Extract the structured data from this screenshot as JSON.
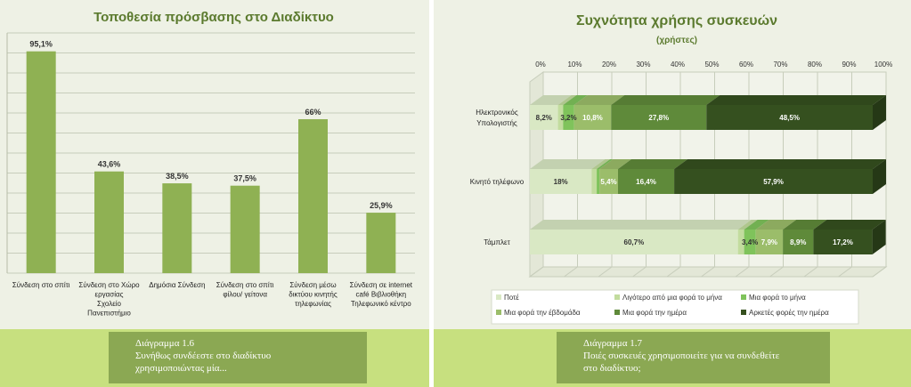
{
  "left_chart": {
    "title": "Τοποθεσία πρόσβασης στο Διαδίκτυο",
    "bar_color": "#8fb153",
    "categories": [
      [
        "Σύνδεση στο σπίτι"
      ],
      [
        "Σύνδεση στο Χώρο",
        "εργασίας",
        "Σχολείο",
        "Πανεπιστήμιο"
      ],
      [
        "Δημόσια Σύνδεση"
      ],
      [
        "Σύνδεση στο σπίτι",
        "φίλου/ γείτονα"
      ],
      [
        "Σύνδεση μέσω",
        "δικτύου κινητής",
        "τηλεφωνίας"
      ],
      [
        "Σύνδεση σε internet",
        "café Βιβλιοθήκη",
        "Τηλεφωνικό κέντρο"
      ]
    ],
    "data_labels": [
      "95,1%",
      "43,6%",
      "38,5%",
      "37,5%",
      "66%",
      "25,9%"
    ]
  },
  "right_chart": {
    "title": "Συχνότητα χρήσης συσκευών",
    "subtitle": "(χρήστες)",
    "x_ticks": [
      "0%",
      "10%",
      "20%",
      "30%",
      "40%",
      "50%",
      "60%",
      "70%",
      "80%",
      "90%",
      "100%"
    ],
    "categories": [
      [
        "Ηλεκτρονικός",
        "Υπολογιστής"
      ],
      [
        "Κινητό τηλέφωνο"
      ],
      [
        "Τάμπλετ"
      ]
    ],
    "legend": [
      "Ποτέ",
      "Λιγότερο από μια φορά το μήνα",
      "Μια φορά το μήνα",
      "Μια φορά την έβδομάδα",
      "Μια φορά την ημέρα",
      "Αρκετές φορές την ημέρα"
    ],
    "series_colors": [
      "#d9e8c4",
      "#c2dc9e",
      "#7fc35b",
      "#9bbd6a",
      "#5f8a3a",
      "#35501f"
    ],
    "label_colors": [
      "#333333",
      "#333333",
      "#333333",
      "#ffffff",
      "#ffffff",
      "#ffffff"
    ],
    "labels": [
      [
        "8,2%",
        "",
        "3,2%",
        "10,8%",
        "27,8%",
        "48,5%"
      ],
      [
        "18%",
        "",
        "",
        "5,4%",
        "16,4%",
        "57,9%"
      ],
      [
        "60,7%",
        "",
        "3,4%",
        "7,9%",
        "8,9%",
        "17,2%"
      ]
    ]
  },
  "chart_data": [
    {
      "type": "bar",
      "title": "Τοποθεσία πρόσβασης στο Διαδίκτυο",
      "categories": [
        "Σύνδεση στο σπίτι",
        "Σύνδεση στο Χώρο εργασίας Σχολείο Πανεπιστήμιο",
        "Δημόσια Σύνδεση",
        "Σύνδεση στο σπίτι φίλου/ γείτονα",
        "Σύνδεση μέσω δικτύου κινητής τηλεφωνίας",
        "Σύνδεση σε internet café Βιβλιοθήκη Τηλεφωνικό κέντρο"
      ],
      "values": [
        95.1,
        43.6,
        38.5,
        37.5,
        66,
        25.9
      ],
      "ylim": [
        0,
        100
      ],
      "grid": true
    },
    {
      "type": "bar",
      "orientation": "horizontal",
      "stacked": true,
      "title": "Συχνότητα χρήσης συσκευών",
      "subtitle": "(χρήστες)",
      "categories": [
        "Ηλεκτρονικός Υπολογιστής",
        "Κινητό τηλέφωνο",
        "Τάμπλετ"
      ],
      "xlim": [
        0,
        100
      ],
      "grid": true,
      "legend_position": "bottom",
      "series": [
        {
          "name": "Ποτέ",
          "values": [
            8.2,
            18,
            60.7
          ]
        },
        {
          "name": "Λιγότερο από μια φορά το μήνα",
          "values": [
            1.5,
            1.5,
            1.8
          ]
        },
        {
          "name": "Μια φορά το μήνα",
          "values": [
            3.2,
            0.8,
            3.4
          ]
        },
        {
          "name": "Μια φορά την έβδομάδα",
          "values": [
            10.8,
            5.4,
            7.9
          ]
        },
        {
          "name": "Μια φορά την ημέρα",
          "values": [
            27.8,
            16.4,
            8.9
          ]
        },
        {
          "name": "Αρκετές φορές την ημέρα",
          "values": [
            48.5,
            57.9,
            17.2
          ]
        }
      ]
    }
  ],
  "captions": {
    "left": [
      "Διάγραμμα 1.6",
      "Συνήθως συνδέεστε στο διαδίκτυο",
      "χρησιμοποιώντας μία..."
    ],
    "right": [
      "Διάγραμμα 1.7",
      "Ποιές συσκευές χρησιμοποιείτε για να συνδεθείτε",
      "στο διαδίκτυο;"
    ]
  }
}
